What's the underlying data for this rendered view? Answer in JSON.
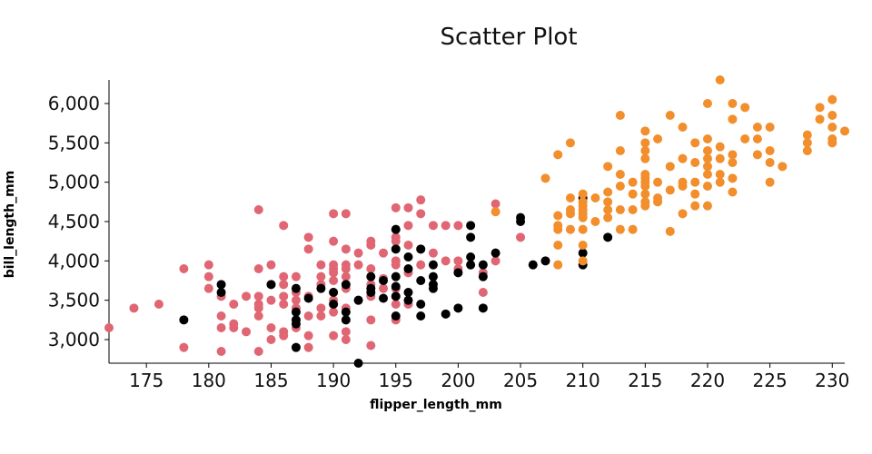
{
  "chart_data": {
    "type": "scatter",
    "title": "Scatter Plot",
    "xlabel": "flipper_length_mm",
    "ylabel": "bill_length_mm",
    "xlim": [
      172,
      231
    ],
    "ylim": [
      2700,
      6300
    ],
    "x_ticks": [
      175,
      180,
      185,
      190,
      195,
      200,
      205,
      210,
      215,
      220,
      225,
      230
    ],
    "x_tick_labels": [
      "175",
      "180",
      "185",
      "190",
      "195",
      "200",
      "205",
      "210",
      "215",
      "220",
      "225",
      "230"
    ],
    "y_ticks": [
      3000,
      3500,
      4000,
      4500,
      5000,
      5500,
      6000
    ],
    "y_tick_labels": [
      "3,000",
      "3,500",
      "4,000",
      "4,500",
      "5,000",
      "5,500",
      "6,000"
    ],
    "grid": false,
    "legend": "none",
    "series": [
      {
        "color": "#e06674",
        "points": [
          [
            172,
            3150
          ],
          [
            174,
            3400
          ],
          [
            176,
            3450
          ],
          [
            178,
            3900
          ],
          [
            178,
            2900
          ],
          [
            180,
            3950
          ],
          [
            180,
            3800
          ],
          [
            180,
            3650
          ],
          [
            181,
            3550
          ],
          [
            181,
            3300
          ],
          [
            181,
            3150
          ],
          [
            181,
            2850
          ],
          [
            182,
            3450
          ],
          [
            182,
            3200
          ],
          [
            182,
            3150
          ],
          [
            183,
            3550
          ],
          [
            183,
            3100
          ],
          [
            184,
            4650
          ],
          [
            184,
            3900
          ],
          [
            184,
            3550
          ],
          [
            184,
            3450
          ],
          [
            184,
            3400
          ],
          [
            184,
            3300
          ],
          [
            184,
            2850
          ],
          [
            185,
            3950
          ],
          [
            185,
            3700
          ],
          [
            185,
            3500
          ],
          [
            185,
            3150
          ],
          [
            185,
            3000
          ],
          [
            186,
            4450
          ],
          [
            186,
            3800
          ],
          [
            186,
            3550
          ],
          [
            186,
            3450
          ],
          [
            186,
            3100
          ],
          [
            186,
            3050
          ],
          [
            187,
            3800
          ],
          [
            187,
            3600
          ],
          [
            187,
            3500
          ],
          [
            187,
            3400
          ],
          [
            187,
            3150
          ],
          [
            188,
            4300
          ],
          [
            188,
            4150
          ],
          [
            188,
            3300
          ],
          [
            188,
            3050
          ],
          [
            188,
            2900
          ],
          [
            189,
            3950
          ],
          [
            189,
            3800
          ],
          [
            189,
            3700
          ],
          [
            189,
            3400
          ],
          [
            189,
            3300
          ],
          [
            190,
            4600
          ],
          [
            190,
            4250
          ],
          [
            190,
            3950
          ],
          [
            190,
            3900
          ],
          [
            190,
            3850
          ],
          [
            190,
            3750
          ],
          [
            190,
            3600
          ],
          [
            190,
            3450
          ],
          [
            190,
            3350
          ],
          [
            190,
            3050
          ],
          [
            191,
            4600
          ],
          [
            191,
            4150
          ],
          [
            191,
            3950
          ],
          [
            191,
            3900
          ],
          [
            191,
            3800
          ],
          [
            191,
            3650
          ],
          [
            191,
            3400
          ],
          [
            191,
            3100
          ],
          [
            191,
            3000
          ],
          [
            192,
            4100
          ],
          [
            192,
            3950
          ],
          [
            192,
            3500
          ],
          [
            193,
            4250
          ],
          [
            193,
            4200
          ],
          [
            193,
            3900
          ],
          [
            193,
            3700
          ],
          [
            193,
            3550
          ],
          [
            193,
            3250
          ],
          [
            193,
            2925
          ],
          [
            194,
            4100
          ],
          [
            194,
            3775
          ],
          [
            194,
            3650
          ],
          [
            195,
            4675
          ],
          [
            195,
            4300
          ],
          [
            195,
            4250
          ],
          [
            195,
            3950
          ],
          [
            195,
            3650
          ],
          [
            195,
            3450
          ],
          [
            195,
            3250
          ],
          [
            196,
            4675
          ],
          [
            196,
            4450
          ],
          [
            196,
            4200
          ],
          [
            196,
            3850
          ],
          [
            196,
            3450
          ],
          [
            197,
            4775
          ],
          [
            197,
            4600
          ],
          [
            197,
            4150
          ],
          [
            198,
            4450
          ],
          [
            198,
            4100
          ],
          [
            199,
            4450
          ],
          [
            199,
            4000
          ],
          [
            200,
            4450
          ],
          [
            200,
            4000
          ],
          [
            200,
            3900
          ],
          [
            201,
            3950
          ],
          [
            202,
            3600
          ],
          [
            202,
            3850
          ],
          [
            203,
            4725
          ],
          [
            203,
            4000
          ],
          [
            205,
            4300
          ],
          [
            195,
            4000
          ],
          [
            188,
            3550
          ],
          [
            190,
            3500
          ],
          [
            186,
            3700
          ],
          [
            197,
            3950
          ]
        ]
      },
      {
        "color": "#000000",
        "points": [
          [
            178,
            3250
          ],
          [
            181,
            3700
          ],
          [
            181,
            3600
          ],
          [
            185,
            3700
          ],
          [
            187,
            3650
          ],
          [
            187,
            3350
          ],
          [
            187,
            3250
          ],
          [
            187,
            3200
          ],
          [
            187,
            2900
          ],
          [
            188,
            3525
          ],
          [
            189,
            3650
          ],
          [
            190,
            3600
          ],
          [
            190,
            3450
          ],
          [
            191,
            3700
          ],
          [
            191,
            3350
          ],
          [
            191,
            3250
          ],
          [
            192,
            3500
          ],
          [
            192,
            2700
          ],
          [
            193,
            3800
          ],
          [
            193,
            3650
          ],
          [
            193,
            3600
          ],
          [
            194,
            3750
          ],
          [
            194,
            3525
          ],
          [
            195,
            4400
          ],
          [
            195,
            4150
          ],
          [
            195,
            3800
          ],
          [
            195,
            3675
          ],
          [
            195,
            3550
          ],
          [
            195,
            3300
          ],
          [
            196,
            4050
          ],
          [
            196,
            3900
          ],
          [
            196,
            3600
          ],
          [
            196,
            3500
          ],
          [
            197,
            4150
          ],
          [
            197,
            3750
          ],
          [
            197,
            3450
          ],
          [
            197,
            3300
          ],
          [
            198,
            3950
          ],
          [
            198,
            3800
          ],
          [
            198,
            3700
          ],
          [
            198,
            3650
          ],
          [
            199,
            3325
          ],
          [
            200,
            3850
          ],
          [
            200,
            3400
          ],
          [
            201,
            4450
          ],
          [
            201,
            4300
          ],
          [
            201,
            4050
          ],
          [
            201,
            3950
          ],
          [
            202,
            3950
          ],
          [
            202,
            3800
          ],
          [
            202,
            3400
          ],
          [
            203,
            4100
          ],
          [
            205,
            4550
          ],
          [
            205,
            4500
          ],
          [
            206,
            3950
          ],
          [
            207,
            4000
          ],
          [
            210,
            4800
          ],
          [
            210,
            4100
          ],
          [
            210,
            3950
          ],
          [
            212,
            4300
          ]
        ]
      },
      {
        "color": "#f28e2c",
        "points": [
          [
            203,
            4625
          ],
          [
            207,
            5050
          ],
          [
            208,
            5350
          ],
          [
            208,
            4575
          ],
          [
            208,
            4450
          ],
          [
            208,
            4400
          ],
          [
            208,
            4200
          ],
          [
            208,
            3950
          ],
          [
            209,
            5500
          ],
          [
            209,
            4800
          ],
          [
            209,
            4650
          ],
          [
            209,
            4600
          ],
          [
            209,
            4400
          ],
          [
            210,
            4850
          ],
          [
            210,
            4750
          ],
          [
            210,
            4700
          ],
          [
            210,
            4650
          ],
          [
            210,
            4600
          ],
          [
            210,
            4550
          ],
          [
            210,
            4400
          ],
          [
            210,
            4200
          ],
          [
            210,
            4000
          ],
          [
            211,
            4800
          ],
          [
            211,
            4500
          ],
          [
            212,
            5200
          ],
          [
            212,
            4875
          ],
          [
            212,
            4750
          ],
          [
            212,
            4650
          ],
          [
            212,
            4550
          ],
          [
            213,
            5850
          ],
          [
            213,
            5400
          ],
          [
            213,
            5100
          ],
          [
            213,
            4950
          ],
          [
            213,
            4650
          ],
          [
            213,
            4400
          ],
          [
            214,
            5000
          ],
          [
            214,
            4850
          ],
          [
            214,
            4650
          ],
          [
            214,
            4400
          ],
          [
            215,
            5650
          ],
          [
            215,
            5500
          ],
          [
            215,
            5400
          ],
          [
            215,
            5300
          ],
          [
            215,
            5100
          ],
          [
            215,
            5050
          ],
          [
            215,
            5000
          ],
          [
            215,
            4950
          ],
          [
            215,
            4850
          ],
          [
            215,
            4750
          ],
          [
            215,
            4700
          ],
          [
            216,
            5550
          ],
          [
            216,
            5000
          ],
          [
            216,
            4800
          ],
          [
            216,
            4750
          ],
          [
            217,
            5850
          ],
          [
            217,
            5200
          ],
          [
            217,
            4900
          ],
          [
            217,
            4375
          ],
          [
            218,
            5700
          ],
          [
            218,
            5300
          ],
          [
            218,
            5000
          ],
          [
            218,
            4950
          ],
          [
            218,
            4600
          ],
          [
            219,
            5500
          ],
          [
            219,
            5250
          ],
          [
            219,
            5000
          ],
          [
            219,
            4850
          ],
          [
            219,
            4700
          ],
          [
            220,
            6000
          ],
          [
            220,
            5550
          ],
          [
            220,
            5400
          ],
          [
            220,
            5300
          ],
          [
            220,
            5200
          ],
          [
            220,
            5100
          ],
          [
            220,
            4950
          ],
          [
            220,
            4700
          ],
          [
            221,
            6300
          ],
          [
            221,
            5450
          ],
          [
            221,
            5300
          ],
          [
            221,
            5100
          ],
          [
            221,
            5000
          ],
          [
            222,
            6000
          ],
          [
            222,
            5800
          ],
          [
            222,
            5350
          ],
          [
            222,
            5250
          ],
          [
            222,
            5050
          ],
          [
            222,
            4875
          ],
          [
            223,
            5950
          ],
          [
            223,
            5550
          ],
          [
            224,
            5700
          ],
          [
            224,
            5550
          ],
          [
            224,
            5350
          ],
          [
            225,
            5700
          ],
          [
            225,
            5400
          ],
          [
            225,
            5250
          ],
          [
            225,
            5000
          ],
          [
            226,
            5200
          ],
          [
            228,
            5600
          ],
          [
            228,
            5500
          ],
          [
            228,
            5400
          ],
          [
            229,
            5950
          ],
          [
            229,
            5800
          ],
          [
            230,
            6050
          ],
          [
            230,
            5850
          ],
          [
            230,
            5700
          ],
          [
            230,
            5550
          ],
          [
            230,
            5500
          ],
          [
            231,
            5650
          ]
        ]
      }
    ]
  }
}
